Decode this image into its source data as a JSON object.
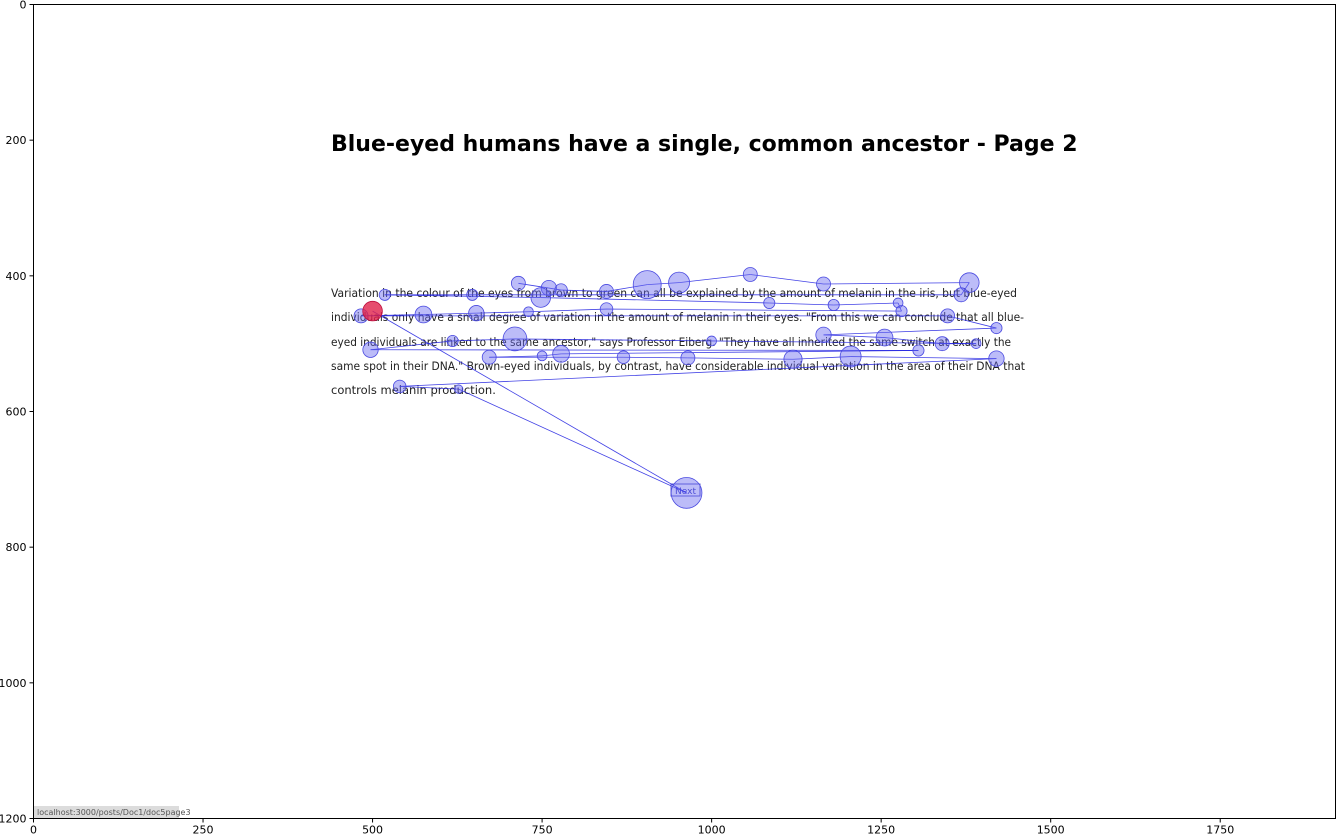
{
  "page": {
    "title": "Blue-eyed humans have a single, common ancestor - Page 2",
    "paragraph_lines": [
      "Variation in the colour of the eyes from brown to green can all be explained by the amount of melanin in the iris, but blue-eyed",
      "individuals only have a small degree of variation in the amount of melanin in their eyes. \"From this we can conclude that all blue-",
      "eyed individuals are linked to the same ancestor,\" says Professor Eiberg. \"They have all inherited the same switch at exactly the",
      "same spot in their DNA.\" Brown-eyed individuals, by contrast, have considerable individual variation in the area of their DNA that",
      "controls melanin production."
    ],
    "next_button_label": "Next",
    "status_url": "localhost:3000/posts/Doc1/doc5page3"
  },
  "chart_data": {
    "type": "scatter",
    "xlim": [
      0,
      1920
    ],
    "ylim": [
      1200,
      0
    ],
    "xticks": [
      0,
      250,
      500,
      750,
      1000,
      1250,
      1500,
      1750
    ],
    "yticks": [
      0,
      200,
      400,
      600,
      800,
      1000,
      1200
    ],
    "grid": false,
    "colors": {
      "fixation": "#6a6af0",
      "path": "#2020e0",
      "last_fixation": "#e0204a"
    },
    "fixations": [
      {
        "x": 715,
        "y": 411,
        "d": 1
      },
      {
        "x": 760,
        "y": 418,
        "d": 1.1
      },
      {
        "x": 778,
        "y": 421,
        "d": 0.9
      },
      {
        "x": 845,
        "y": 423,
        "d": 1
      },
      {
        "x": 905,
        "y": 413,
        "d": 2
      },
      {
        "x": 952,
        "y": 410,
        "d": 1.5
      },
      {
        "x": 1057,
        "y": 398,
        "d": 1
      },
      {
        "x": 1165,
        "y": 412,
        "d": 1
      },
      {
        "x": 1380,
        "y": 410,
        "d": 1.4
      },
      {
        "x": 1368,
        "y": 428,
        "d": 1
      },
      {
        "x": 647,
        "y": 428,
        "d": 0.8
      },
      {
        "x": 518,
        "y": 428,
        "d": 0.8
      },
      {
        "x": 748,
        "y": 432,
        "d": 1.4
      },
      {
        "x": 1085,
        "y": 440,
        "d": 0.8
      },
      {
        "x": 1180,
        "y": 443,
        "d": 0.8
      },
      {
        "x": 1275,
        "y": 440,
        "d": 0.7
      },
      {
        "x": 1280,
        "y": 452,
        "d": 0.8
      },
      {
        "x": 845,
        "y": 449,
        "d": 0.9
      },
      {
        "x": 730,
        "y": 453,
        "d": 0.7
      },
      {
        "x": 653,
        "y": 455,
        "d": 1.1
      },
      {
        "x": 575,
        "y": 457,
        "d": 1.2
      },
      {
        "x": 483,
        "y": 459,
        "d": 1
      },
      {
        "x": 1348,
        "y": 459,
        "d": 1
      },
      {
        "x": 1420,
        "y": 477,
        "d": 0.8
      },
      {
        "x": 1165,
        "y": 487,
        "d": 1.1
      },
      {
        "x": 1255,
        "y": 491,
        "d": 1.2
      },
      {
        "x": 1340,
        "y": 500,
        "d": 1
      },
      {
        "x": 1390,
        "y": 500,
        "d": 0.7
      },
      {
        "x": 1000,
        "y": 496,
        "d": 0.7
      },
      {
        "x": 710,
        "y": 493,
        "d": 1.7
      },
      {
        "x": 618,
        "y": 496,
        "d": 0.8
      },
      {
        "x": 497,
        "y": 509,
        "d": 1.1
      },
      {
        "x": 1305,
        "y": 510,
        "d": 0.8
      },
      {
        "x": 778,
        "y": 515,
        "d": 1.2
      },
      {
        "x": 750,
        "y": 518,
        "d": 0.7
      },
      {
        "x": 672,
        "y": 520,
        "d": 1
      },
      {
        "x": 870,
        "y": 520,
        "d": 0.9
      },
      {
        "x": 965,
        "y": 521,
        "d": 1
      },
      {
        "x": 1120,
        "y": 523,
        "d": 1.3
      },
      {
        "x": 1205,
        "y": 519,
        "d": 1.5
      },
      {
        "x": 1420,
        "y": 522,
        "d": 1.1
      },
      {
        "x": 540,
        "y": 563,
        "d": 0.9
      },
      {
        "x": 627,
        "y": 567,
        "d": 0.6
      },
      {
        "x": 963,
        "y": 720,
        "d": 2.2
      },
      {
        "x": 500,
        "y": 452,
        "d": 1.4
      }
    ]
  }
}
